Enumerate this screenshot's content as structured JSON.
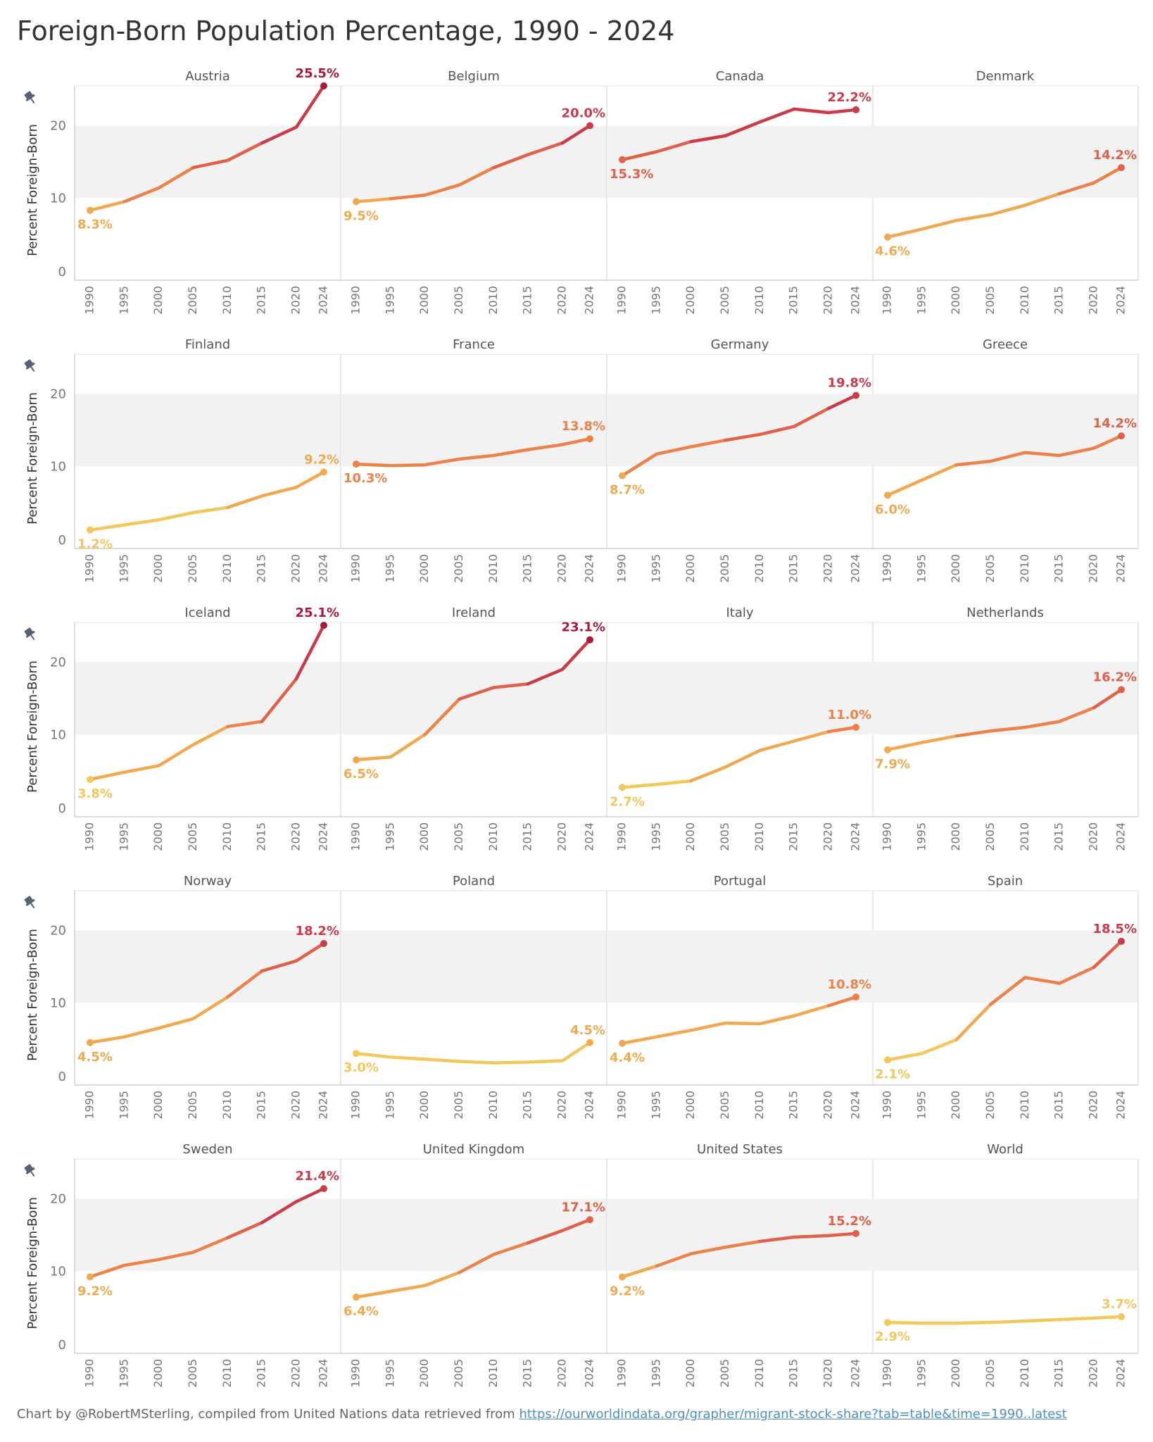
{
  "title": "Foreign-Born  Population Percentage, 1990 - 2024",
  "footer": {
    "credit": "Chart by @RobertMSterling, compiled from United Nations data retrieved from",
    "link_text": "https://ourworldindata.org/grapher/migrant-stock-share?tab=table&time=1990..latest"
  },
  "colors": {
    "grid_band": "#f2f2f2",
    "axis": "#cfcfcf",
    "text": "#555555",
    "pin": "#566375",
    "scale": [
      "#f2c75c",
      "#f0a94e",
      "#ec8149",
      "#e0604a",
      "#c93a4a",
      "#a8173e"
    ]
  },
  "chart_data": {
    "type": "line",
    "layout": "small-multiples",
    "columns": 4,
    "ylabel": "Percent Foreign-Born",
    "ylim": [
      0,
      25.5
    ],
    "yticks": [
      0,
      10,
      20
    ],
    "shaded_band": [
      10,
      20
    ],
    "x": [
      1990,
      1995,
      2000,
      2005,
      2010,
      2015,
      2020,
      2024
    ],
    "xticks": [
      "1990",
      "1995",
      "2000",
      "2005",
      "2010",
      "2015",
      "2020",
      "2024"
    ],
    "series": [
      {
        "name": "Austria",
        "values": [
          8.3,
          9.5,
          11.4,
          14.2,
          15.2,
          17.6,
          19.8,
          25.5
        ],
        "start_label": "8.3%",
        "end_label": "25.5%"
      },
      {
        "name": "Belgium",
        "values": [
          9.5,
          9.9,
          10.4,
          11.8,
          14.2,
          16.0,
          17.6,
          20.0
        ],
        "start_label": "9.5%",
        "end_label": "20.0%"
      },
      {
        "name": "Canada",
        "values": [
          15.3,
          16.4,
          17.8,
          18.6,
          20.5,
          22.3,
          21.8,
          22.2
        ],
        "start_label": "15.3%",
        "end_label": "22.2%"
      },
      {
        "name": "Denmark",
        "values": [
          4.6,
          5.7,
          6.9,
          7.7,
          9.0,
          10.6,
          12.1,
          14.2
        ],
        "start_label": "4.6%",
        "end_label": "14.2%"
      },
      {
        "name": "Finland",
        "values": [
          1.2,
          1.9,
          2.6,
          3.6,
          4.3,
          5.9,
          7.1,
          9.2
        ],
        "start_label": "1.2%",
        "end_label": "9.2%"
      },
      {
        "name": "France",
        "values": [
          10.3,
          10.1,
          10.2,
          11.0,
          11.5,
          12.3,
          13.0,
          13.8
        ],
        "start_label": "10.3%",
        "end_label": "13.8%"
      },
      {
        "name": "Germany",
        "values": [
          8.7,
          11.7,
          12.7,
          13.6,
          14.4,
          15.5,
          18.0,
          19.8
        ],
        "start_label": "8.7%",
        "end_label": "19.8%"
      },
      {
        "name": "Greece",
        "values": [
          6.0,
          8.1,
          10.2,
          10.7,
          11.9,
          11.5,
          12.5,
          14.2
        ],
        "start_label": "6.0%",
        "end_label": "14.2%"
      },
      {
        "name": "Iceland",
        "values": [
          3.8,
          4.8,
          5.7,
          8.6,
          11.1,
          11.8,
          17.7,
          25.1
        ],
        "start_label": "3.8%",
        "end_label": "25.1%"
      },
      {
        "name": "Ireland",
        "values": [
          6.5,
          6.9,
          10.0,
          14.9,
          16.5,
          17.0,
          19.0,
          23.1
        ],
        "start_label": "6.5%",
        "end_label": "23.1%"
      },
      {
        "name": "Italy",
        "values": [
          2.7,
          3.1,
          3.6,
          5.5,
          7.8,
          9.1,
          10.4,
          11.0
        ],
        "start_label": "2.7%",
        "end_label": "11.0%"
      },
      {
        "name": "Netherlands",
        "values": [
          7.9,
          8.9,
          9.8,
          10.5,
          11.0,
          11.8,
          13.7,
          16.2
        ],
        "start_label": "7.9%",
        "end_label": "16.2%"
      },
      {
        "name": "Norway",
        "values": [
          4.5,
          5.3,
          6.5,
          7.8,
          10.8,
          14.4,
          15.8,
          18.2
        ],
        "start_label": "4.5%",
        "end_label": "18.2%"
      },
      {
        "name": "Poland",
        "values": [
          3.0,
          2.5,
          2.2,
          1.9,
          1.7,
          1.8,
          2.0,
          4.5
        ],
        "start_label": "3.0%",
        "end_label": "4.5%"
      },
      {
        "name": "Portugal",
        "values": [
          4.4,
          5.3,
          6.2,
          7.2,
          7.1,
          8.2,
          9.6,
          10.8
        ],
        "start_label": "4.4%",
        "end_label": "10.8%"
      },
      {
        "name": "Spain",
        "values": [
          2.1,
          3.0,
          4.9,
          9.8,
          13.5,
          12.7,
          14.9,
          18.5
        ],
        "start_label": "2.1%",
        "end_label": "18.5%"
      },
      {
        "name": "Sweden",
        "values": [
          9.2,
          10.8,
          11.6,
          12.6,
          14.6,
          16.7,
          19.6,
          21.4
        ],
        "start_label": "9.2%",
        "end_label": "21.4%"
      },
      {
        "name": "United Kingdom",
        "values": [
          6.4,
          7.2,
          8.0,
          9.8,
          12.3,
          13.9,
          15.6,
          17.1
        ],
        "start_label": "6.4%",
        "end_label": "17.1%"
      },
      {
        "name": "United States",
        "values": [
          9.2,
          10.7,
          12.4,
          13.3,
          14.1,
          14.7,
          14.9,
          15.2
        ],
        "start_label": "9.2%",
        "end_label": "15.2%"
      },
      {
        "name": "World",
        "values": [
          2.9,
          2.8,
          2.8,
          2.9,
          3.1,
          3.3,
          3.5,
          3.7
        ],
        "start_label": "2.9%",
        "end_label": "3.7%"
      }
    ]
  }
}
